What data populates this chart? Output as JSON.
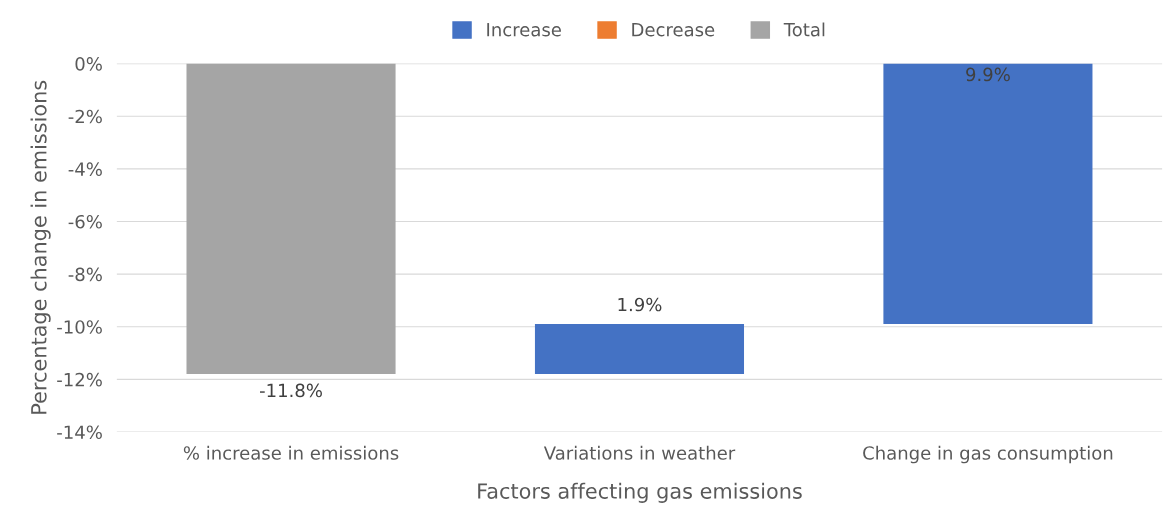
{
  "chart_data": {
    "type": "bar",
    "xlabel": "Factors affecting gas emissions",
    "ylabel": "Percentage change in emissions",
    "categories": [
      "% increase in emissions",
      "Variations in weather",
      "Change in gas consumption"
    ],
    "series": [
      {
        "name": "Increase",
        "color": "#4472c4",
        "base": [
          null,
          -11.8,
          -9.9
        ],
        "values": [
          null,
          1.9,
          9.9
        ],
        "value_labels": [
          null,
          "1.9%",
          "9.9%"
        ]
      },
      {
        "name": "Decrease",
        "color": "#ed7d31",
        "values": [
          null,
          null,
          null
        ]
      },
      {
        "name": "Total",
        "color": "#a5a5a5",
        "base": [
          0,
          null,
          null
        ],
        "values": [
          -11.8,
          null,
          null
        ],
        "value_labels": [
          "-11.8%",
          null,
          null
        ]
      }
    ],
    "ylim": [
      -14,
      0
    ],
    "yticks": [
      {
        "value": 0,
        "label": "0%"
      },
      {
        "value": -2,
        "label": "-2%"
      },
      {
        "value": -4,
        "label": "-4%"
      },
      {
        "value": -6,
        "label": "-6%"
      },
      {
        "value": -8,
        "label": "-8%"
      },
      {
        "value": -10,
        "label": "-10%"
      },
      {
        "value": -12,
        "label": "-12%"
      },
      {
        "value": -14,
        "label": "-14%"
      }
    ],
    "grid": "y",
    "legend": "top"
  }
}
